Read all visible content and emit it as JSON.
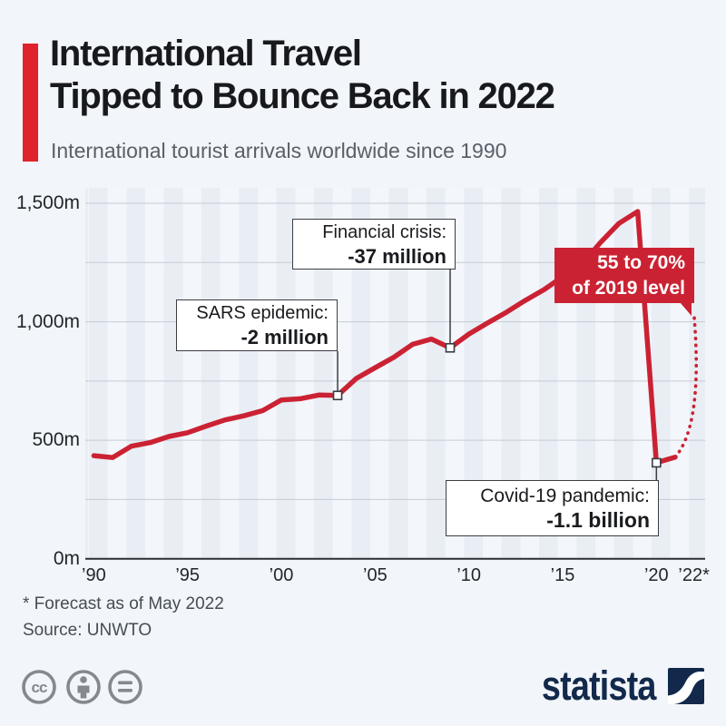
{
  "header": {
    "title_line1": "International Travel",
    "title_line2": "Tipped to Bounce Back in 2022",
    "subtitle": "International tourist arrivals worldwide since 1990",
    "accent_color": "#e0222c"
  },
  "chart_data": {
    "type": "line",
    "title": "International tourist arrivals worldwide since 1990",
    "unit": "million arrivals",
    "x": [
      1990,
      1991,
      1992,
      1993,
      1994,
      1995,
      1996,
      1997,
      1998,
      1999,
      2000,
      2001,
      2002,
      2003,
      2004,
      2005,
      2006,
      2007,
      2008,
      2009,
      2010,
      2011,
      2012,
      2013,
      2014,
      2015,
      2016,
      2017,
      2018,
      2019,
      2020,
      2021
    ],
    "values": [
      435,
      427,
      475,
      490,
      516,
      532,
      560,
      586,
      603,
      625,
      670,
      675,
      691,
      689,
      761,
      806,
      850,
      905,
      927,
      890,
      948,
      995,
      1040,
      1090,
      1135,
      1190,
      1240,
      1333,
      1415,
      1465,
      405,
      429
    ],
    "forecast": {
      "x": [
        2021,
        2022
      ],
      "values": [
        429,
        1035
      ],
      "style": "dotted"
    },
    "ylim": [
      0,
      1500
    ],
    "gridline_step": 250,
    "line_color": "#cb2233",
    "yticks": [
      {
        "value": 1500,
        "label": "1,500m"
      },
      {
        "value": 1000,
        "label": "1,000m"
      },
      {
        "value": 500,
        "label": "500m"
      },
      {
        "value": 0,
        "label": "0m"
      }
    ],
    "xticks": [
      {
        "year": 1990,
        "label": "’90"
      },
      {
        "year": 1995,
        "label": "’95"
      },
      {
        "year": 2000,
        "label": "’00"
      },
      {
        "year": 2005,
        "label": "’05"
      },
      {
        "year": 2010,
        "label": "’10"
      },
      {
        "year": 2015,
        "label": "’15"
      },
      {
        "year": 2020,
        "label": "’20"
      },
      {
        "year": 2022,
        "label": "’22*"
      }
    ],
    "markers": [
      {
        "year": 2003
      },
      {
        "year": 2009
      },
      {
        "year": 2020
      }
    ],
    "annotations": [
      {
        "id": "sars",
        "line1": "SARS epidemic:",
        "line2": "-2 million",
        "points_to_year": 2003
      },
      {
        "id": "financial",
        "line1": "Financial crisis:",
        "line2": "-37 million",
        "points_to_year": 2009
      },
      {
        "id": "covid",
        "line1": "Covid-19 pandemic:",
        "line2": "-1.1 billion",
        "points_to_year": 2020
      },
      {
        "id": "forecast-callout",
        "line1": "55 to 70%",
        "line2": "of 2019 level",
        "color": "#cb2233"
      }
    ]
  },
  "footer": {
    "note": "* Forecast as of May 2022",
    "source": "Source: UNWTO"
  },
  "branding": {
    "logo_text": "statista",
    "logo_color": "#12294b"
  },
  "license_icons": [
    "cc-icon",
    "attribution-icon",
    "equal-icon"
  ]
}
